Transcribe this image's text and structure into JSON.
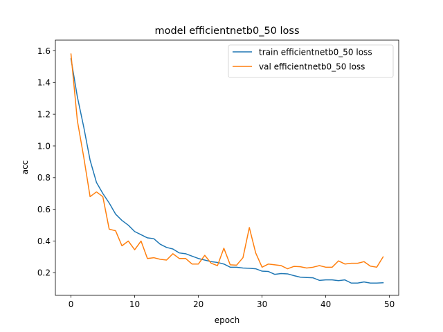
{
  "chart_data": {
    "type": "line",
    "title": "model efficientnetb0_50 loss",
    "xlabel": "epoch",
    "ylabel": "acc",
    "xlim": [
      -2.45,
      51.45
    ],
    "ylim": [
      0.0575,
      1.6675
    ],
    "xticks": [
      0,
      10,
      20,
      30,
      40,
      50
    ],
    "yticks": [
      0.2,
      0.4,
      0.6,
      0.8,
      1.0,
      1.2,
      1.4,
      1.6
    ],
    "ytick_labels": [
      "0.2",
      "0.4",
      "0.6",
      "0.8",
      "1.0",
      "1.2",
      "1.4",
      "1.6"
    ],
    "grid": false,
    "legend_position": "top-right",
    "x": [
      0,
      1,
      2,
      3,
      4,
      5,
      6,
      7,
      8,
      9,
      10,
      11,
      12,
      13,
      14,
      15,
      16,
      17,
      18,
      19,
      20,
      21,
      22,
      23,
      24,
      25,
      26,
      27,
      28,
      29,
      30,
      31,
      32,
      33,
      34,
      35,
      36,
      37,
      38,
      39,
      40,
      41,
      42,
      43,
      44,
      45,
      46,
      47,
      48,
      49
    ],
    "series": [
      {
        "name": "train efficientnetb0_50 loss",
        "color": "#1f77b4",
        "values": [
          1.55,
          1.31,
          1.12,
          0.91,
          0.77,
          0.7,
          0.64,
          0.57,
          0.53,
          0.5,
          0.46,
          0.44,
          0.42,
          0.415,
          0.38,
          0.36,
          0.35,
          0.325,
          0.32,
          0.305,
          0.29,
          0.28,
          0.27,
          0.265,
          0.255,
          0.235,
          0.235,
          0.23,
          0.228,
          0.225,
          0.21,
          0.208,
          0.19,
          0.195,
          0.193,
          0.182,
          0.172,
          0.17,
          0.168,
          0.152,
          0.155,
          0.155,
          0.15,
          0.155,
          0.135,
          0.135,
          0.142,
          0.135,
          0.135,
          0.137
        ]
      },
      {
        "name": "val efficientnetb0_50 loss",
        "color": "#ff7f0e",
        "values": [
          1.58,
          1.16,
          0.93,
          0.68,
          0.71,
          0.68,
          0.475,
          0.465,
          0.37,
          0.4,
          0.345,
          0.4,
          0.29,
          0.295,
          0.285,
          0.28,
          0.32,
          0.29,
          0.29,
          0.255,
          0.255,
          0.31,
          0.26,
          0.245,
          0.355,
          0.25,
          0.248,
          0.295,
          0.485,
          0.325,
          0.235,
          0.255,
          0.25,
          0.245,
          0.225,
          0.24,
          0.238,
          0.23,
          0.235,
          0.245,
          0.235,
          0.235,
          0.275,
          0.255,
          0.26,
          0.26,
          0.27,
          0.242,
          0.235,
          0.3
        ]
      }
    ]
  }
}
